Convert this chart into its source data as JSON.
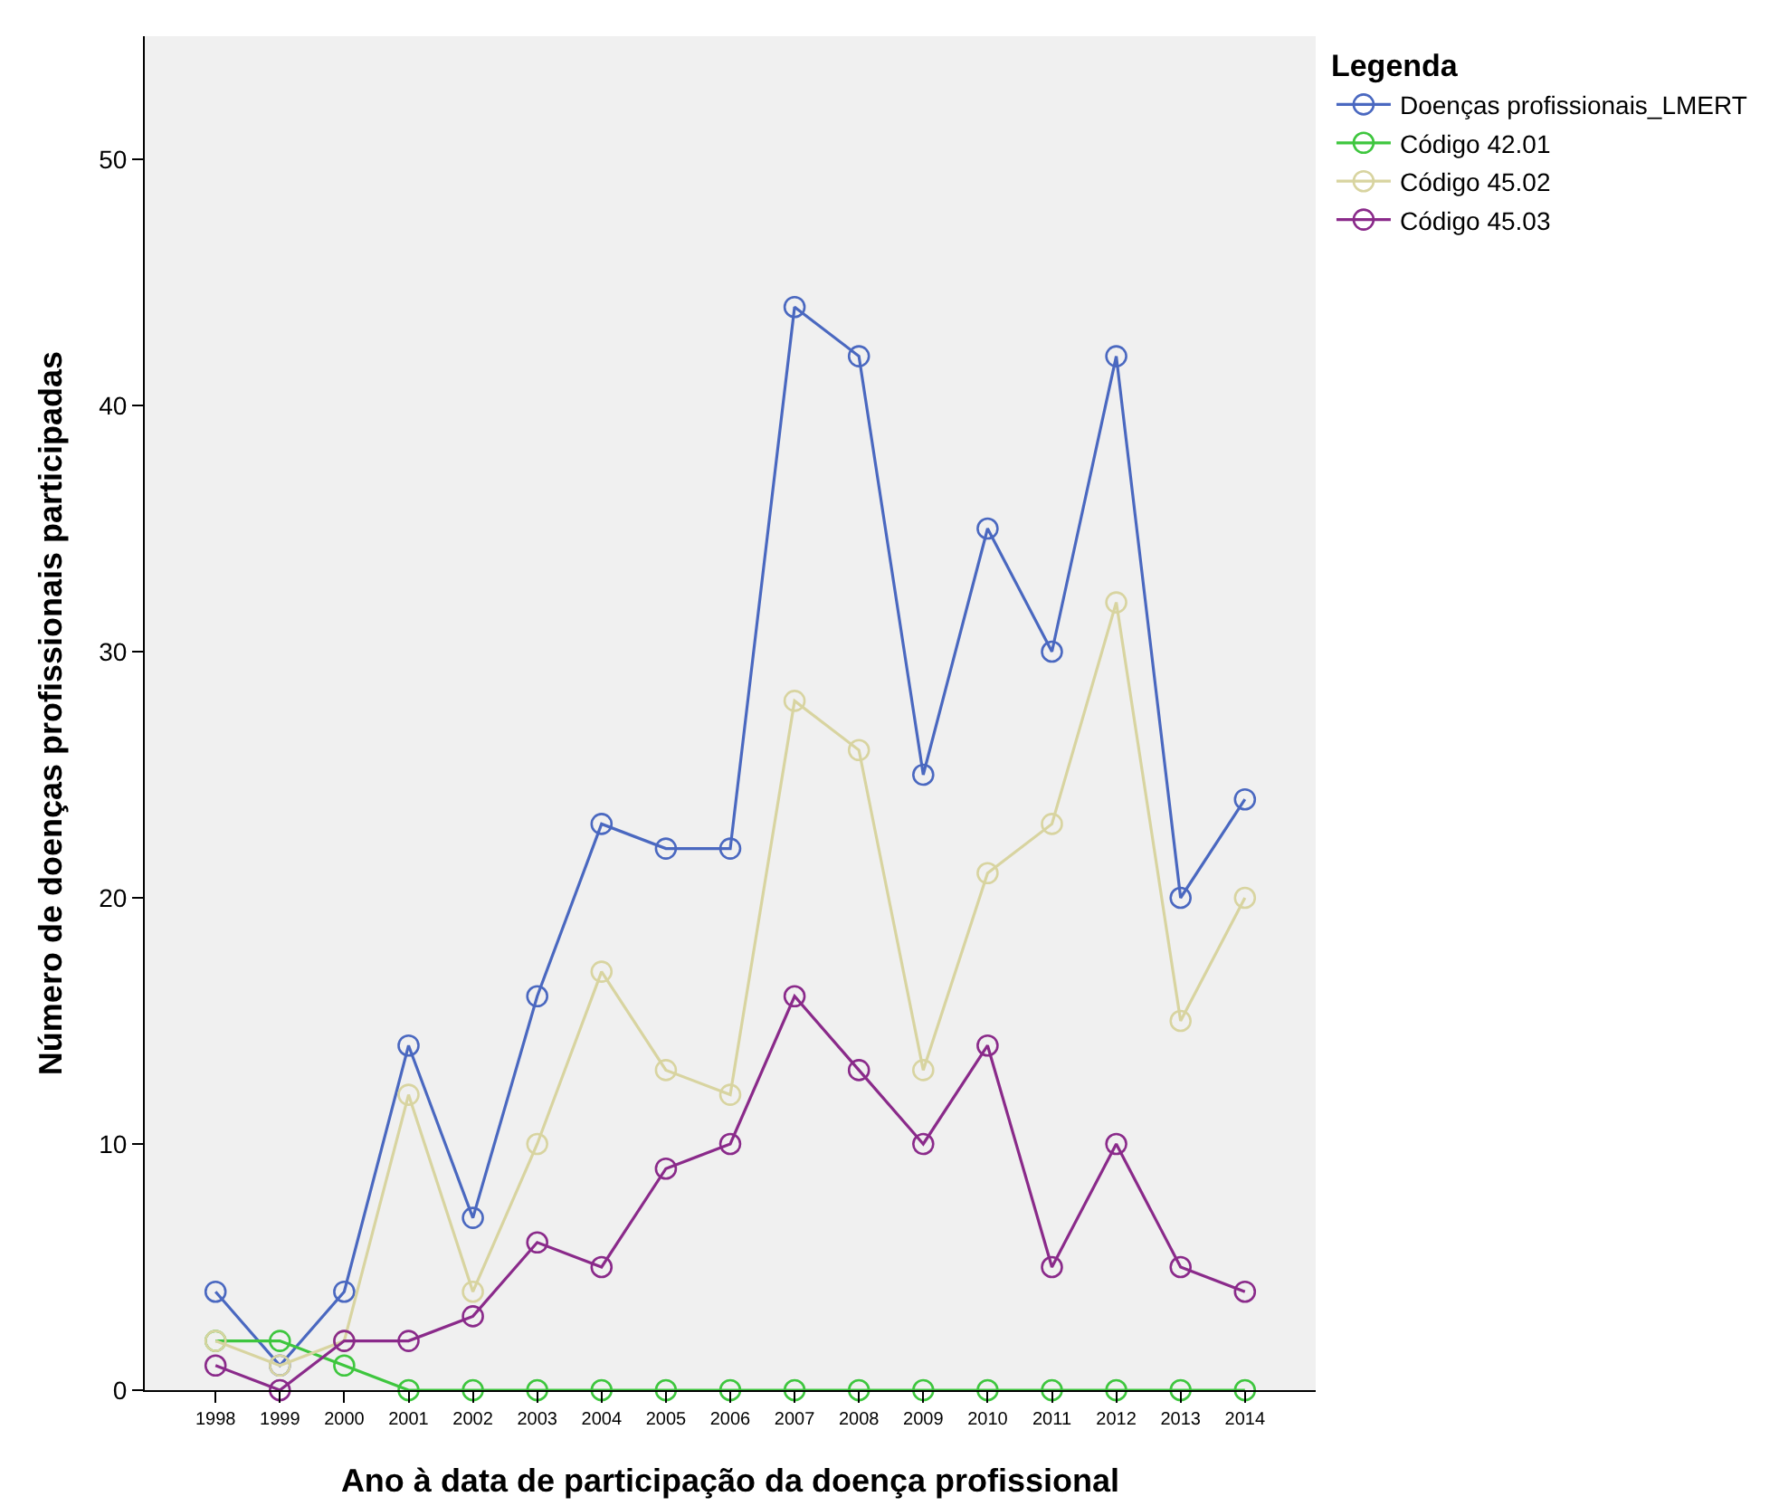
{
  "chart_data": {
    "type": "line",
    "xlabel": "Ano à data de participação da doença profissional",
    "ylabel": "Número de doenças profissionais participadas",
    "legend_title": "Legenda",
    "legend": "top right",
    "marker": "circle",
    "grid": false,
    "ylim": [
      0,
      55
    ],
    "yticks": [
      0,
      10,
      20,
      30,
      40,
      50
    ],
    "categories": [
      "1998",
      "1999",
      "2000",
      "2001",
      "2002",
      "2003",
      "2004",
      "2005",
      "2006",
      "2007",
      "2008",
      "2009",
      "2010",
      "2011",
      "2012",
      "2013",
      "2014"
    ],
    "series": [
      {
        "name": "Doenças profissionais_LMERT",
        "color": "#4a68c0",
        "values": [
          4,
          1,
          4,
          14,
          7,
          16,
          23,
          22,
          22,
          44,
          42,
          25,
          35,
          30,
          42,
          20,
          24
        ]
      },
      {
        "name": "Código 42.01",
        "color": "#3ec63e",
        "values": [
          2,
          2,
          1,
          0,
          0,
          0,
          0,
          0,
          0,
          0,
          0,
          0,
          0,
          0,
          0,
          0,
          0
        ]
      },
      {
        "name": "Código 45.02",
        "color": "#d8d4a0",
        "values": [
          2,
          1,
          2,
          12,
          4,
          10,
          17,
          13,
          12,
          28,
          26,
          13,
          21,
          23,
          32,
          15,
          20
        ]
      },
      {
        "name": "Código 45.03",
        "color": "#8a2a8a",
        "values": [
          1,
          0,
          2,
          2,
          3,
          6,
          5,
          9,
          10,
          16,
          13,
          10,
          14,
          5,
          10,
          5,
          4
        ]
      }
    ]
  }
}
